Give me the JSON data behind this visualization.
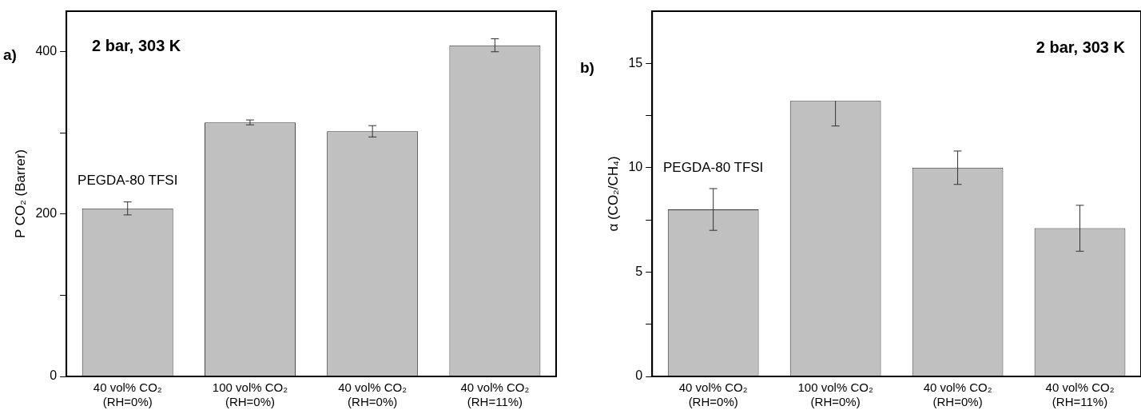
{
  "chart_data": [
    {
      "type": "bar",
      "title": "a)",
      "ylabel": "P CO₂ (Barrer)",
      "categories": [
        "40 vol% CO₂\n(RH=0%)",
        "100 vol% CO₂\n(RH=0%)",
        "40 vol% CO₂\n(RH=0%)",
        "40 vol% CO₂\n(RH=11%)"
      ],
      "values": [
        207,
        313,
        302,
        408
      ],
      "errors": [
        8,
        3,
        7,
        8
      ],
      "color": "#c0c0c0",
      "ylim": [
        0,
        450
      ],
      "yticks": [
        0,
        {
          "value": 100,
          "label": null
        },
        200,
        {
          "value": 300,
          "label": null
        },
        400
      ],
      "grid": false,
      "legend": false,
      "annotations": [
        "2 bar, 303 K",
        "PEGDA-80 TFSI"
      ]
    },
    {
      "type": "bar",
      "title": "b)",
      "ylabel": "α (CO₂/CH₄)",
      "categories": [
        "40 vol% CO₂\n(RH=0%)",
        "100 vol% CO₂\n(RH=0%)",
        "40 vol% CO₂\n(RH=0%)",
        "40 vol% CO₂\n(RH=11%)"
      ],
      "values": [
        8,
        13.2,
        10,
        7.1
      ],
      "errors": [
        1,
        [
          12,
          13.2
        ],
        0.8,
        1.1
      ],
      "color": "#c0c0c0",
      "ylim": [
        0,
        17.5
      ],
      "yticks": [
        0,
        {
          "value": 2.5,
          "label": null
        },
        5,
        {
          "value": 7.5,
          "label": null
        },
        10,
        {
          "value": 12.5,
          "label": null
        },
        15
      ],
      "grid": false,
      "legend": false,
      "annotations": [
        "2 bar, 303 K",
        "PEGDA-80 TFSI"
      ]
    }
  ]
}
